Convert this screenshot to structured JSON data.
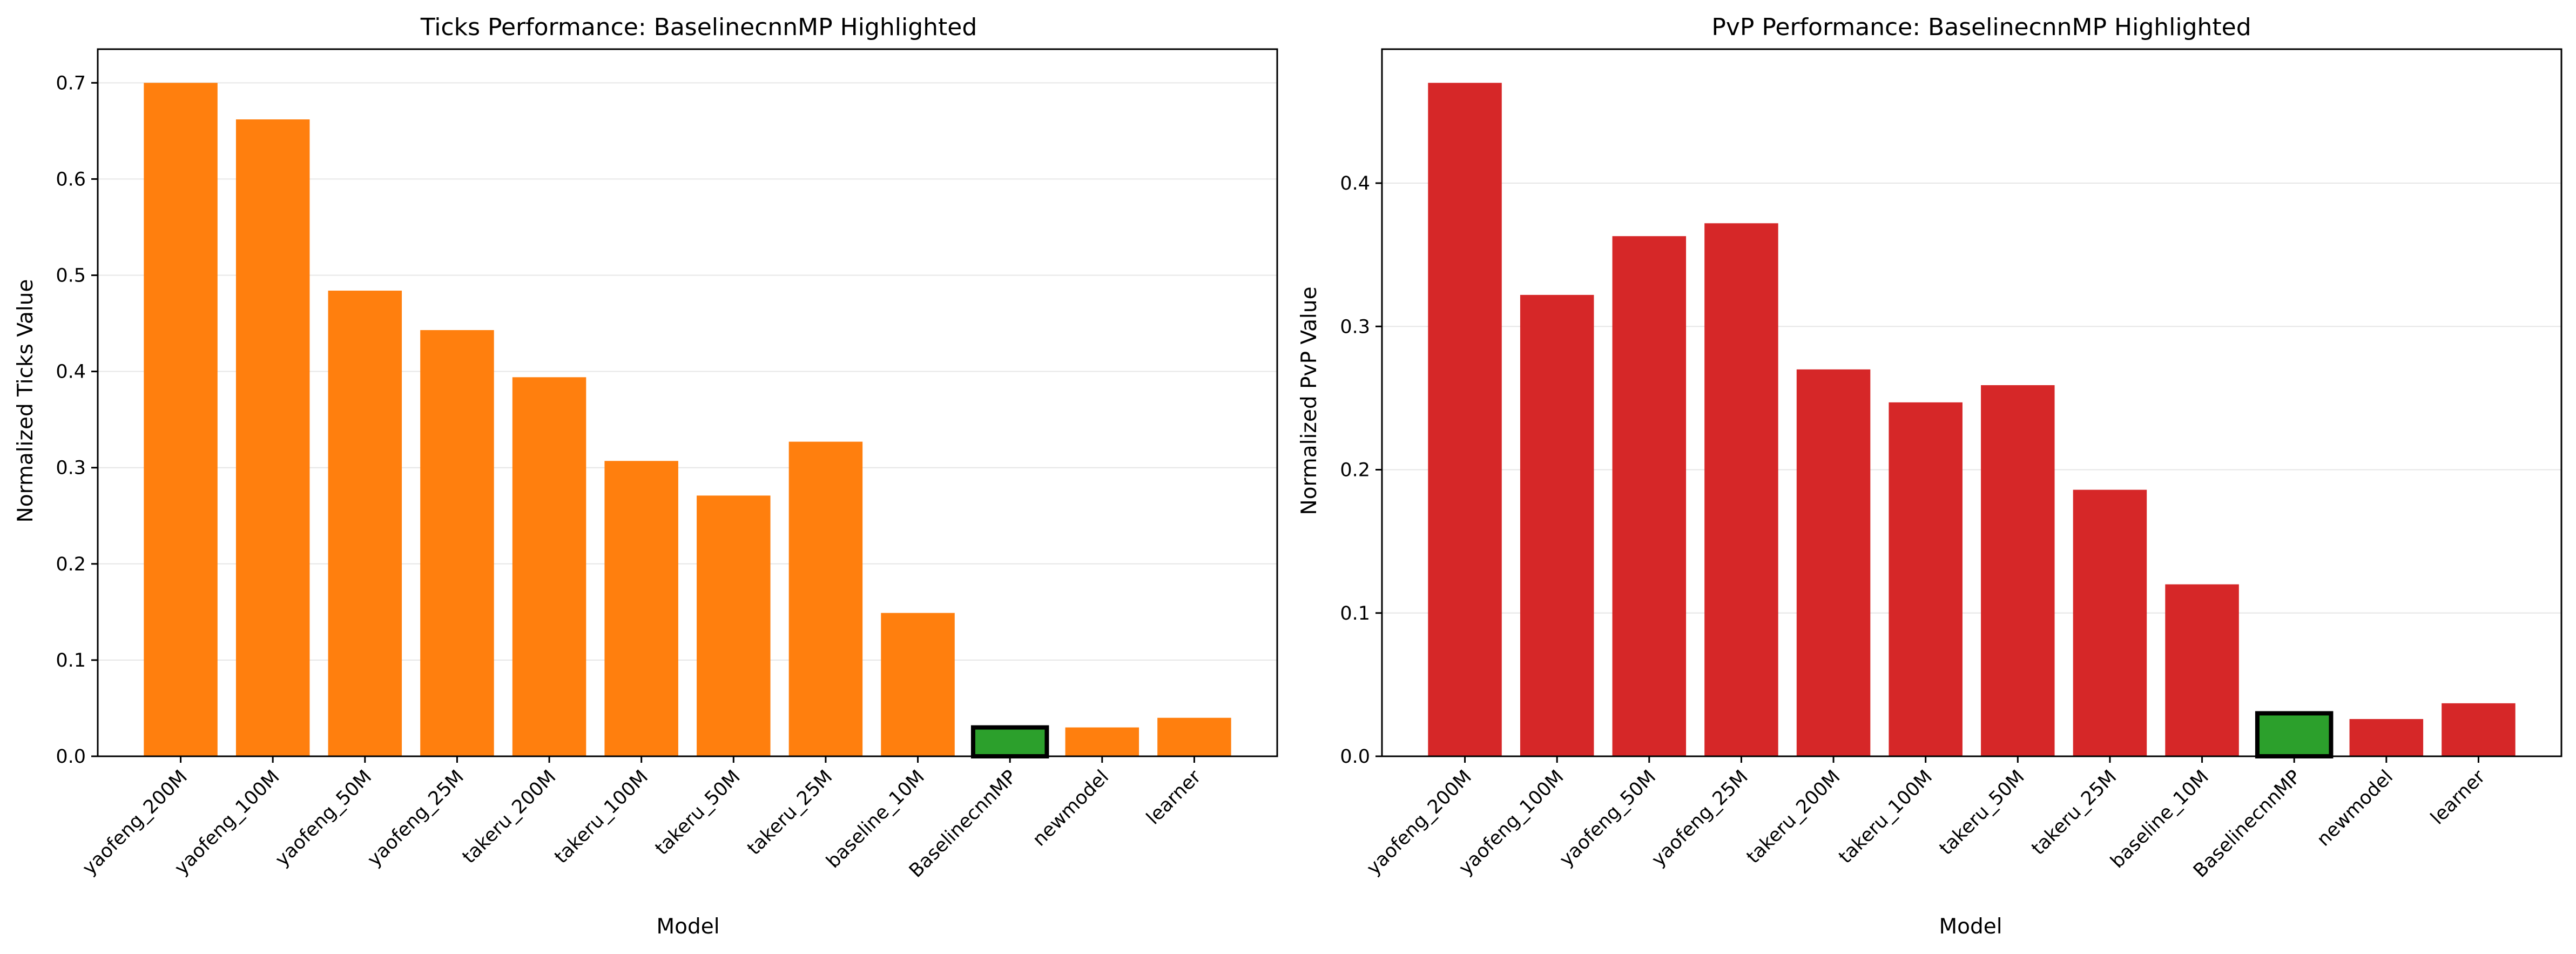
{
  "chart_data": [
    {
      "type": "bar",
      "title": "Ticks Performance: BaselinecnnMP Highlighted",
      "xlabel": "Model",
      "ylabel": "Normalized Ticks Value",
      "categories": [
        "yaofeng_200M",
        "yaofeng_100M",
        "yaofeng_50M",
        "yaofeng_25M",
        "takeru_200M",
        "takeru_100M",
        "takeru_50M",
        "takeru_25M",
        "baseline_10M",
        "BaselinecnnMP",
        "newmodel",
        "learner"
      ],
      "values": [
        0.7,
        0.662,
        0.484,
        0.443,
        0.394,
        0.307,
        0.271,
        0.327,
        0.149,
        0.03,
        0.03,
        0.04
      ],
      "highlight": "BaselinecnnMP",
      "ylim": [
        0,
        0.735
      ],
      "yticks": [
        0.0,
        0.1,
        0.2,
        0.3,
        0.4,
        0.5,
        0.6,
        0.7
      ],
      "ytick_labels": [
        "0.0",
        "0.1",
        "0.2",
        "0.3",
        "0.4",
        "0.5",
        "0.6",
        "0.7"
      ],
      "grid": "y",
      "colors": {
        "bar": "#ff7f0e",
        "highlight": "#2ca02c",
        "highlight_edge": "#000000",
        "grid": "#e6e6e6"
      }
    },
    {
      "type": "bar",
      "title": "PvP Performance: BaselinecnnMP Highlighted",
      "xlabel": "Model",
      "ylabel": "Normalized PvP Value",
      "categories": [
        "yaofeng_200M",
        "yaofeng_100M",
        "yaofeng_50M",
        "yaofeng_25M",
        "takeru_200M",
        "takeru_100M",
        "takeru_50M",
        "takeru_25M",
        "baseline_10M",
        "BaselinecnnMP",
        "newmodel",
        "learner"
      ],
      "values": [
        0.47,
        0.322,
        0.363,
        0.372,
        0.27,
        0.247,
        0.259,
        0.186,
        0.12,
        0.03,
        0.026,
        0.037
      ],
      "highlight": "BaselinecnnMP",
      "ylim": [
        0,
        0.4935
      ],
      "yticks": [
        0.0,
        0.1,
        0.2,
        0.3,
        0.4
      ],
      "ytick_labels": [
        "0.0",
        "0.1",
        "0.2",
        "0.3",
        "0.4"
      ],
      "grid": "y",
      "colors": {
        "bar": "#d62728",
        "highlight": "#2ca02c",
        "highlight_edge": "#000000",
        "grid": "#e6e6e6"
      }
    }
  ]
}
